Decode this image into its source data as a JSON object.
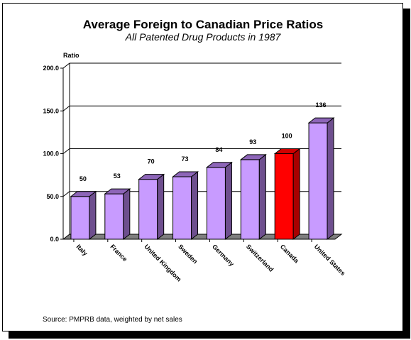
{
  "colors": {
    "bar_front": "#C89BFF",
    "bar_side": "#6E4F8E",
    "bar_top": "#8D65B8",
    "highlight_front": "#FF0000",
    "highlight_side": "#A80000",
    "highlight_top": "#D00000",
    "floor": "#7F7F7F"
  },
  "source_text": "Source: PMPRB data, weighted by net sales",
  "chart_data": {
    "type": "bar",
    "title": "Average Foreign to Canadian Price Ratios",
    "subtitle": "All Patented Drug Products in 1987",
    "ylabel": "Ratio",
    "xlabel": "",
    "ylim": [
      0,
      200
    ],
    "yticks": [
      "0.0",
      "50.0",
      "100.0",
      "150.0",
      "200.0"
    ],
    "grid": true,
    "three_d": true,
    "categories": [
      "Italy",
      "France",
      "United Kingdom",
      "Sweden",
      "Germany",
      "Switzerland",
      "Canada",
      "United States"
    ],
    "values": [
      50,
      53,
      70,
      73,
      84,
      93,
      100,
      136
    ],
    "highlight": "Canada"
  }
}
